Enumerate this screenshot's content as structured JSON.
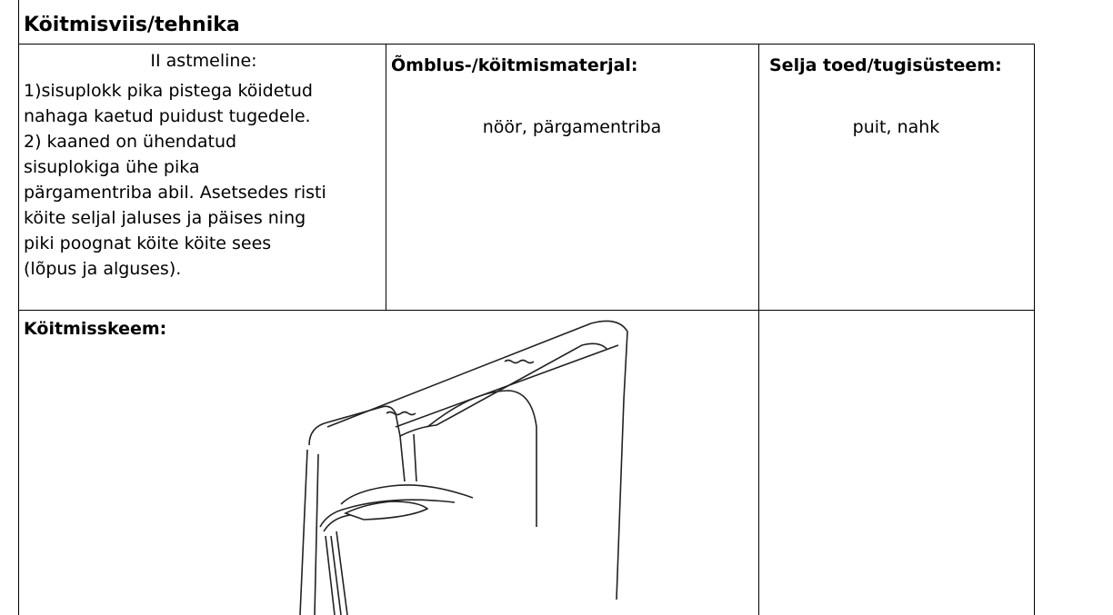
{
  "header": {
    "title": "Köitmisviis/tehnika"
  },
  "technique": {
    "heading": "II astmeline:",
    "lines": [
      "1)sisuplokk pika pistega köidetud",
      "nahaga kaetud puidust tugedele.",
      "2) kaaned on ühendatud",
      "sisuplokiga ühe pika",
      "pärgamentriba abil. Asetsedes risti",
      "köite seljal jaluses ja päises ning",
      "piki poognat köite köite sees",
      "(lõpus ja alguses)."
    ]
  },
  "material": {
    "label": "Õmblus-/köitmismaterjal:",
    "value": "nöör, pärgamentriba"
  },
  "support": {
    "label": "Selja toed/tugisüsteem:",
    "value": "puit, nahk"
  },
  "diagram": {
    "label": "Köitmisskeem:"
  }
}
